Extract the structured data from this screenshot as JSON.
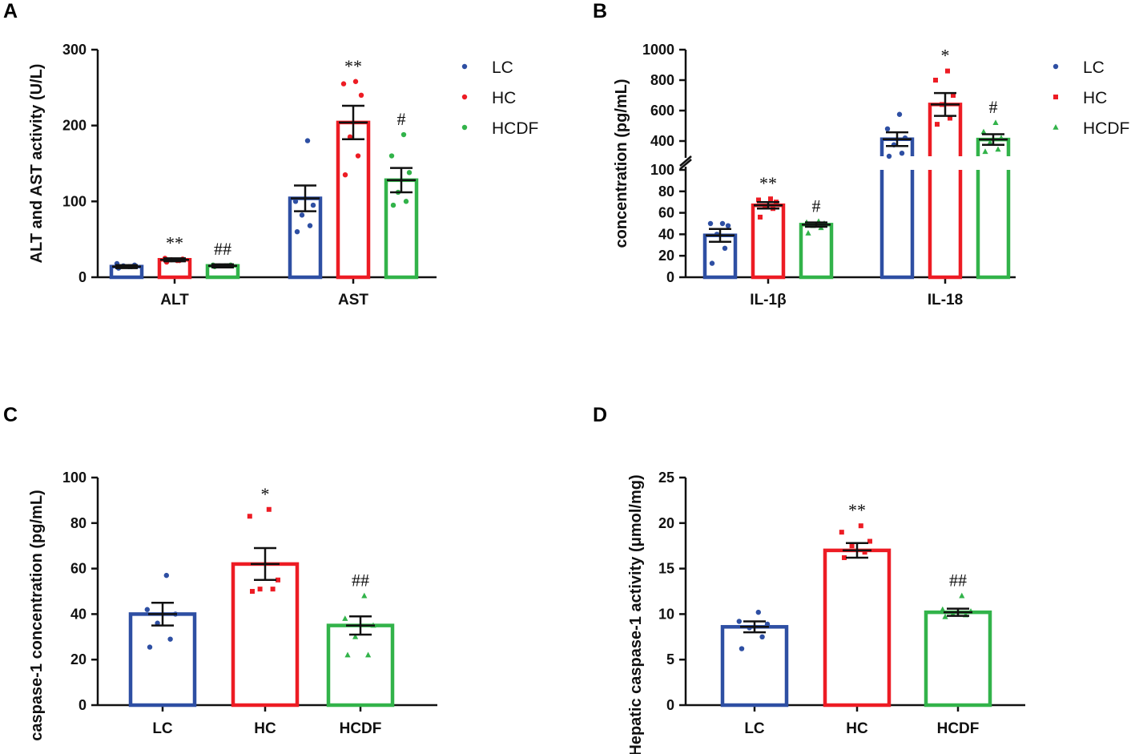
{
  "colors": {
    "LC": "#2e4fa3",
    "HC": "#ed1c24",
    "HCDF": "#32b34a",
    "axis": "#111111"
  },
  "chart_data": [
    {
      "type": "bar",
      "panel": "A",
      "ylabel": "ALT and AST activity (U/L)",
      "ylim": [
        0,
        300
      ],
      "yticks": [
        "0",
        "100",
        "200",
        "300"
      ],
      "categories": [
        "ALT",
        "AST"
      ],
      "legend": [
        "LC",
        "HC",
        "HCDF"
      ],
      "series": [
        {
          "name": "LC",
          "values": [
            14,
            104
          ],
          "sem": [
            2,
            17
          ],
          "points": [
            [
              12,
              14,
              15,
              16,
              18,
              14
            ],
            [
              60,
              68,
              82,
              95,
              100,
              180
            ]
          ],
          "sig": [
            "",
            ""
          ]
        },
        {
          "name": "HC",
          "values": [
            23,
            204
          ],
          "sem": [
            2,
            22
          ],
          "points": [
            [
              20,
              22,
              23,
              24,
              25,
              22
            ],
            [
              135,
              160,
              185,
              240,
              255,
              258
            ]
          ],
          "sig": [
            "**",
            "**"
          ]
        },
        {
          "name": "HCDF",
          "values": [
            15,
            128
          ],
          "sem": [
            2,
            16
          ],
          "points": [
            [
              14,
              15,
              15,
              16,
              16,
              15
            ],
            [
              95,
              100,
              112,
              138,
              160,
              188
            ]
          ],
          "sig": [
            "##",
            "#"
          ]
        }
      ]
    },
    {
      "type": "bar",
      "panel": "B",
      "ylabel": "concentration (pg/mL)",
      "broken_axis": {
        "lower": [
          0,
          100
        ],
        "upper": [
          300,
          1000
        ]
      },
      "yticks_lower": [
        "0",
        "20",
        "40",
        "60",
        "80",
        "100"
      ],
      "yticks_upper": [
        "400",
        "600",
        "800",
        "1000"
      ],
      "categories": [
        "IL-1β",
        "IL-18"
      ],
      "legend": [
        "LC",
        "HC",
        "HCDF"
      ],
      "series": [
        {
          "name": "LC",
          "values": [
            39,
            412
          ],
          "sem": [
            6,
            45
          ],
          "points": [
            [
              13,
              27,
              40,
              48,
              50,
              50
            ],
            [
              300,
              320,
              375,
              420,
              480,
              575
            ]
          ],
          "sig": [
            "",
            ""
          ]
        },
        {
          "name": "HC",
          "values": [
            67,
            640
          ],
          "sem": [
            3,
            75
          ],
          "points": [
            [
              56,
              64,
              66,
              70,
              72,
              73
            ],
            [
              510,
              550,
              640,
              700,
              800,
              860
            ]
          ],
          "sig": [
            "**",
            "*"
          ]
        },
        {
          "name": "HCDF",
          "values": [
            49,
            410
          ],
          "sem": [
            2,
            35
          ],
          "points": [
            [
              41,
              46,
              48,
              50,
              51,
              52
            ],
            [
              330,
              345,
              390,
              420,
              460,
              520
            ]
          ],
          "sig": [
            "#",
            "#"
          ]
        }
      ]
    },
    {
      "type": "bar",
      "panel": "C",
      "ylabel": "caspase-1 concentration (pg/mL)",
      "ylim": [
        0,
        100
      ],
      "yticks": [
        "0",
        "20",
        "40",
        "60",
        "80",
        "100"
      ],
      "categories": [
        "LC",
        "HC",
        "HCDF"
      ],
      "values": [
        40,
        62,
        35
      ],
      "sem": [
        5,
        7,
        4
      ],
      "points": [
        [
          25.5,
          29,
          36,
          40,
          42,
          57
        ],
        [
          50,
          51,
          51,
          55,
          83,
          86
        ],
        [
          22,
          22,
          30,
          35,
          38,
          48
        ]
      ],
      "sig": [
        "",
        "*",
        "##"
      ]
    },
    {
      "type": "bar",
      "panel": "D",
      "ylabel": "Hepatic caspase-1 activity (μmol/mg)",
      "ylim": [
        0,
        25
      ],
      "yticks": [
        "0",
        "5",
        "10",
        "15",
        "20",
        "25"
      ],
      "categories": [
        "LC",
        "HC",
        "HCDF"
      ],
      "values": [
        8.6,
        17.0,
        10.2
      ],
      "sem": [
        0.6,
        0.8,
        0.4
      ],
      "points": [
        [
          6.2,
          7.5,
          8.5,
          8.9,
          9.2,
          10.2
        ],
        [
          16.2,
          16.8,
          17.5,
          18.0,
          19.0,
          19.7
        ],
        [
          9.7,
          9.9,
          10.0,
          10.3,
          10.5,
          12.0
        ]
      ],
      "sig": [
        "",
        "**",
        "##"
      ]
    }
  ]
}
